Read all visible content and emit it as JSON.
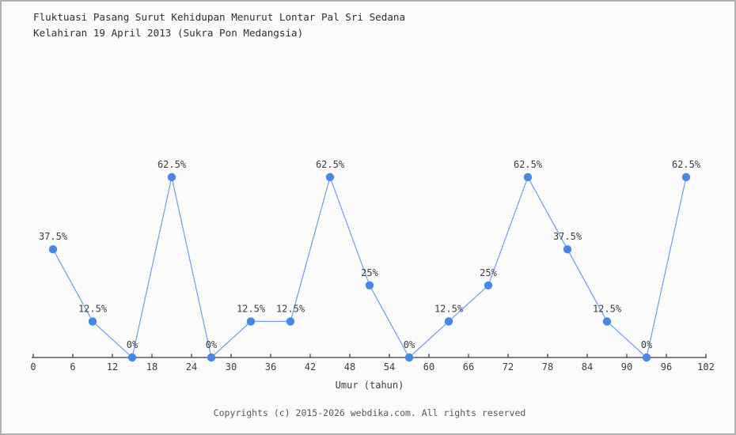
{
  "page": {
    "title_line1": "Fluktuasi Pasang Surut Kehidupan Menurut Lontar Pal Sri Sedana",
    "title_line2": "Kelahiran 19 April 2013 (Sukra Pon Medangsia)",
    "footer": "Copyrights (c) 2015-2026 webdika.com. All rights reserved"
  },
  "chart_data": {
    "type": "line",
    "title": "Fluktuasi Pasang Surut Kehidupan Menurut Lontar Pal Sri Sedana Kelahiran 19 April 2013 (Sukra Pon Medangsia)",
    "xlabel": "Umur (tahun)",
    "ylabel": "",
    "x": [
      3,
      9,
      15,
      21,
      27,
      33,
      39,
      45,
      51,
      57,
      63,
      69,
      75,
      81,
      87,
      93,
      99
    ],
    "values": [
      37.5,
      12.5,
      0,
      62.5,
      0,
      12.5,
      12.5,
      62.5,
      25,
      0,
      12.5,
      25,
      62.5,
      37.5,
      12.5,
      0,
      62.5
    ],
    "point_labels": [
      "37.5%",
      "12.5%",
      "0%",
      "62.5%",
      "0%",
      "12.5%",
      "12.5%",
      "62.5%",
      "25%",
      "0%",
      "12.5%",
      "25%",
      "62.5%",
      "37.5%",
      "12.5%",
      "0%",
      "62.5%"
    ],
    "x_ticks": [
      0,
      6,
      12,
      18,
      24,
      30,
      36,
      42,
      48,
      54,
      60,
      66,
      72,
      78,
      84,
      90,
      96,
      102
    ],
    "xlim": [
      0,
      102
    ],
    "ylim": [
      0,
      100
    ],
    "grid": false,
    "legend": "none",
    "colors": {
      "line": "#6d9eeb",
      "marker": "#4687ea",
      "axis": "#3c3c3c",
      "label": "#3c3c3c"
    }
  }
}
